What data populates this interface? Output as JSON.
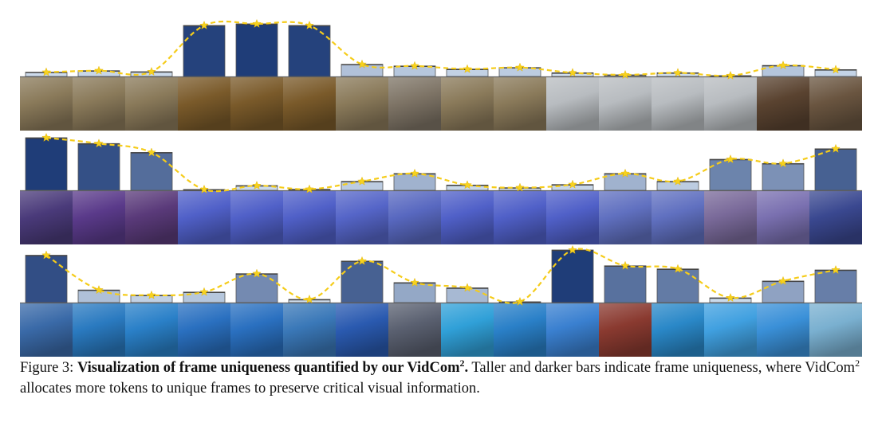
{
  "caption": {
    "label": "Figure 3:",
    "bold_text": "Visualization of frame uniqueness quantified by our VidCom",
    "bold_sup": "2",
    "bold_end": ".",
    "text_1": " Taller and darker bars indicate frame uniqueness, where VidCom",
    "text_sup": "2",
    "text_2": " allocates more tokens to unique frames to preserve critical visual information."
  },
  "colors": {
    "bar_light": "#dce9f6",
    "bar_dark": "#1f3d78",
    "curve": "#f5cc1a",
    "star": "#f7d21e"
  },
  "chart_data": {
    "type": "bar",
    "xlabel": "",
    "ylabel": "",
    "rows": [
      {
        "values": [
          0.08,
          0.11,
          0.09,
          0.97,
          1.0,
          0.97,
          0.23,
          0.2,
          0.14,
          0.17,
          0.07,
          0.03,
          0.07,
          0.01,
          0.21,
          0.13
        ],
        "frames": [
          "#8a7a5a",
          "#8a7a5a",
          "#8a7a5a",
          "#7a5a2a",
          "#7a5a2a",
          "#7a5a2a",
          "#8a7a5a",
          "#7e7466",
          "#8a7a5a",
          "#8a7a5a",
          "#b8bcc0",
          "#b8bcc0",
          "#b8bcc0",
          "#b8bcc0",
          "#5a4330",
          "#6a5540"
        ]
      },
      {
        "values": [
          1.0,
          0.89,
          0.72,
          0.0,
          0.09,
          0.02,
          0.17,
          0.32,
          0.1,
          0.05,
          0.11,
          0.32,
          0.17,
          0.59,
          0.51,
          0.79
        ],
        "frames": [
          "#4a3a7a",
          "#5a3a8a",
          "#5a3a7a",
          "#5060c8",
          "#5060c8",
          "#5060c8",
          "#5565c8",
          "#5868c0",
          "#5060c8",
          "#5060c8",
          "#5060c8",
          "#6070c0",
          "#6070c0",
          "#7a6a9a",
          "#7a70b0",
          "#3a4890"
        ]
      },
      {
        "values": [
          0.9,
          0.24,
          0.14,
          0.2,
          0.55,
          0.06,
          0.79,
          0.38,
          0.28,
          0.0,
          1.0,
          0.7,
          0.64,
          0.09,
          0.41,
          0.62
        ],
        "frames": [
          "#3a6aa8",
          "#2a7ac0",
          "#2a80c8",
          "#2a70c0",
          "#2a70c0",
          "#3a78b8",
          "#2a5ab0",
          "#5a6070",
          "#30a0d8",
          "#2a80c8",
          "#3a80d0",
          "#8a3a30",
          "#2a88c8",
          "#40a0e0",
          "#3a90d8",
          "#7ab0d0"
        ]
      }
    ]
  }
}
